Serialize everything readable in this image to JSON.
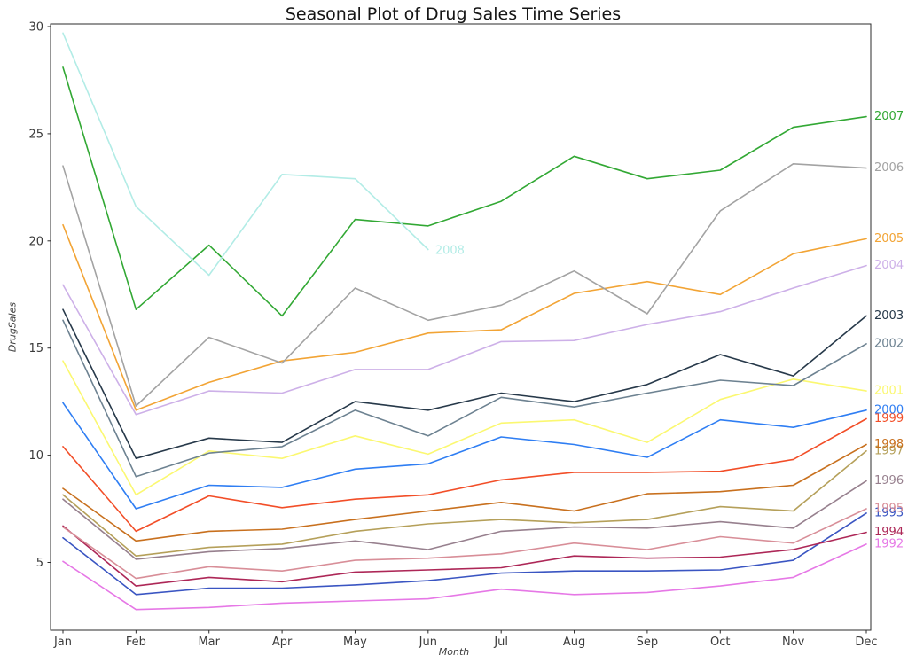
{
  "chart_data": {
    "type": "line",
    "title": "Seasonal Plot of Drug Sales Time Series",
    "xlabel": "Month",
    "ylabel": "DrugSales",
    "x_categories": [
      "Jan",
      "Feb",
      "Mar",
      "Apr",
      "May",
      "Jun",
      "Jul",
      "Aug",
      "Sep",
      "Oct",
      "Nov",
      "Dec"
    ],
    "y_ticks": [
      5,
      10,
      15,
      20,
      25,
      30
    ],
    "ylim": [
      1.84,
      30.12
    ],
    "grid": false,
    "legend_position": "year label at right end of each line",
    "axis_color": "#2b2b2b",
    "tick_label_color": "#3b3b3b",
    "background_color": "#ffffff",
    "series": [
      {
        "name": "1992",
        "color": "#e678e6",
        "values": [
          5.05,
          2.8,
          2.9,
          3.1,
          3.2,
          3.3,
          3.75,
          3.5,
          3.6,
          3.9,
          4.3,
          5.85
        ]
      },
      {
        "name": "1993",
        "color": "#3a55c2",
        "values": [
          6.15,
          3.5,
          3.8,
          3.8,
          3.95,
          4.15,
          4.5,
          4.6,
          4.6,
          4.65,
          5.1,
          7.3
        ]
      },
      {
        "name": "1994",
        "color": "#ad2757",
        "values": [
          6.7,
          3.9,
          4.3,
          4.1,
          4.55,
          4.65,
          4.75,
          5.3,
          5.2,
          5.25,
          5.6,
          6.4
        ]
      },
      {
        "name": "1995",
        "color": "#d88e98",
        "values": [
          6.65,
          4.25,
          4.8,
          4.6,
          5.1,
          5.2,
          5.4,
          5.9,
          5.6,
          6.2,
          5.9,
          7.5
        ]
      },
      {
        "name": "1996",
        "color": "#97808e",
        "values": [
          7.95,
          5.15,
          5.5,
          5.65,
          6.0,
          5.6,
          6.45,
          6.65,
          6.6,
          6.9,
          6.6,
          8.8
        ]
      },
      {
        "name": "1997",
        "color": "#b5a05a",
        "values": [
          8.15,
          5.3,
          5.7,
          5.85,
          6.45,
          6.8,
          7.0,
          6.85,
          7.0,
          7.6,
          7.4,
          10.2
        ]
      },
      {
        "name": "1998",
        "color": "#c8701e",
        "values": [
          8.45,
          6.0,
          6.45,
          6.55,
          7.0,
          7.4,
          7.8,
          7.4,
          8.2,
          8.3,
          8.6,
          10.5
        ]
      },
      {
        "name": "1999",
        "color": "#f24e28",
        "values": [
          10.4,
          6.45,
          8.1,
          7.55,
          7.95,
          8.15,
          8.85,
          9.2,
          9.2,
          9.25,
          9.8,
          11.7
        ]
      },
      {
        "name": "2000",
        "color": "#2f7ef3",
        "values": [
          12.45,
          7.5,
          8.6,
          8.5,
          9.35,
          9.6,
          10.85,
          10.5,
          9.9,
          11.65,
          11.3,
          12.1
        ]
      },
      {
        "name": "2001",
        "color": "#fbf871",
        "values": [
          14.4,
          8.15,
          10.2,
          9.85,
          10.9,
          10.05,
          11.5,
          11.65,
          10.6,
          12.6,
          13.55,
          13.0
        ]
      },
      {
        "name": "2002",
        "color": "#6d8291",
        "values": [
          16.3,
          9.0,
          10.1,
          10.4,
          12.1,
          10.9,
          12.7,
          12.25,
          12.9,
          13.5,
          13.25,
          15.2
        ]
      },
      {
        "name": "2003",
        "color": "#27394a",
        "values": [
          16.8,
          9.85,
          10.8,
          10.6,
          12.5,
          12.1,
          12.9,
          12.5,
          13.3,
          14.7,
          13.7,
          16.5
        ]
      },
      {
        "name": "2004",
        "color": "#cdb0e8",
        "values": [
          17.95,
          11.9,
          13.0,
          12.9,
          14.0,
          14.0,
          15.3,
          15.35,
          16.1,
          16.7,
          17.8,
          18.85
        ]
      },
      {
        "name": "2005",
        "color": "#f2a435",
        "values": [
          20.75,
          12.1,
          13.4,
          14.4,
          14.8,
          15.7,
          15.85,
          17.55,
          18.1,
          17.5,
          19.4,
          20.1
        ]
      },
      {
        "name": "2006",
        "color": "#a3a3a3",
        "values": [
          23.5,
          12.3,
          15.5,
          14.3,
          17.8,
          16.3,
          17.0,
          18.6,
          16.6,
          21.4,
          23.6,
          23.4
        ]
      },
      {
        "name": "2007",
        "color": "#32a834",
        "values": [
          28.1,
          16.8,
          19.8,
          16.5,
          21.0,
          20.7,
          21.85,
          23.95,
          22.9,
          23.3,
          25.3,
          25.8
        ]
      },
      {
        "name": "2008",
        "color": "#b2ece6",
        "values": [
          29.7,
          21.6,
          18.4,
          23.1,
          22.9,
          19.6,
          null,
          null,
          null,
          null,
          null,
          null
        ]
      }
    ]
  }
}
